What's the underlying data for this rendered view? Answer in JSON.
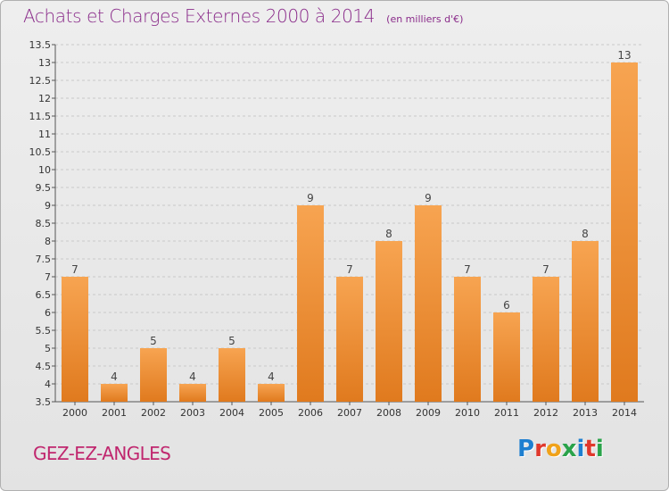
{
  "title": "Achats et Charges Externes 2000 à 2014",
  "subtitle": "(en milliers d'€)",
  "place": "GEZ-EZ-ANGLES",
  "logo_text": "Proxiti",
  "colors": {
    "title": "#8a2b8a",
    "place": "#c0266e",
    "bar_light": "#f7a451",
    "bar_dark": "#e07a1e",
    "grid": "#c9c9c9"
  },
  "logo_letter_colors": [
    "#1e7fd0",
    "#e0382c",
    "#f0a21a",
    "#2aa34a",
    "#1e7fd0",
    "#e0382c",
    "#2aa34a"
  ],
  "chart_data": {
    "type": "bar",
    "categories": [
      "2000",
      "2001",
      "2002",
      "2003",
      "2004",
      "2005",
      "2006",
      "2007",
      "2008",
      "2009",
      "2010",
      "2011",
      "2012",
      "2013",
      "2014"
    ],
    "values": [
      7,
      4,
      5,
      4,
      5,
      4,
      9,
      7,
      8,
      9,
      7,
      6,
      7,
      8,
      13
    ],
    "data_labels": [
      "7",
      "4",
      "5",
      "4",
      "5",
      "4",
      "9",
      "7",
      "8",
      "9",
      "7",
      "6",
      "7",
      "8",
      "13"
    ],
    "ylim": [
      3.5,
      13.5
    ],
    "yticks": [
      "3.5",
      "4",
      "4.5",
      "5",
      "5.5",
      "6",
      "6.5",
      "7",
      "7.5",
      "8",
      "8.5",
      "9",
      "9.5",
      "10",
      "10.5",
      "11",
      "11.5",
      "12",
      "12.5",
      "13",
      "13.5"
    ],
    "grid": true,
    "xlabel": "",
    "ylabel": ""
  }
}
